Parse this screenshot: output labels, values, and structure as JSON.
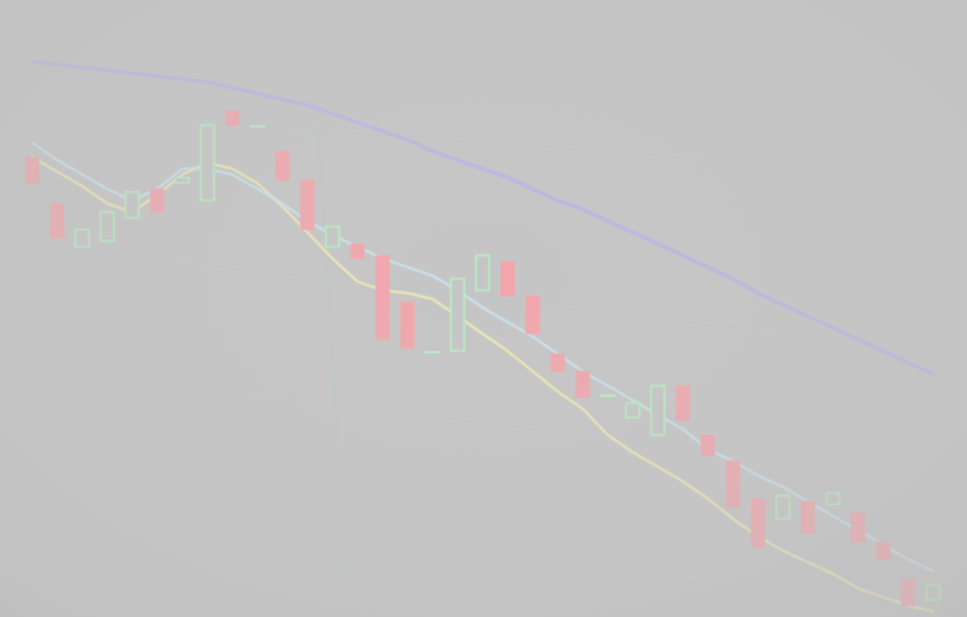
{
  "chart_data": {
    "type": "candlestick",
    "title": "",
    "xlabel": "",
    "ylabel": "",
    "grid": true,
    "legend": "none",
    "x": [
      1,
      2,
      3,
      4,
      5,
      6,
      7,
      8,
      9,
      10,
      11,
      12,
      13,
      14,
      15,
      16,
      17,
      18,
      19,
      20,
      21,
      22,
      23,
      24,
      25,
      26,
      27,
      28,
      29,
      30,
      31,
      32,
      33,
      34,
      35,
      36,
      37
    ],
    "xlim": [
      0,
      38
    ],
    "ylim": [
      0,
      100
    ],
    "candles": [
      {
        "x": 1,
        "open": 79.0,
        "close": 74.5,
        "high": 80.0,
        "low": 73.0
      },
      {
        "x": 2,
        "open": 71.0,
        "close": 65.0,
        "high": 76.0,
        "low": 62.5
      },
      {
        "x": 3,
        "open": 63.5,
        "close": 66.5,
        "high": 74.5,
        "low": 60.5
      },
      {
        "x": 4,
        "open": 64.5,
        "close": 69.5,
        "high": 74.0,
        "low": 61.5
      },
      {
        "x": 5,
        "open": 68.5,
        "close": 73.0,
        "high": 76.0,
        "low": 66.5
      },
      {
        "x": 6,
        "open": 73.5,
        "close": 69.5,
        "high": 76.5,
        "low": 66.5
      },
      {
        "x": 7,
        "open": 74.5,
        "close": 75.5,
        "high": 77.5,
        "low": 74.0
      },
      {
        "x": 8,
        "open": 71.5,
        "close": 84.5,
        "high": 85.5,
        "low": 70.0
      },
      {
        "x": 9,
        "open": 87.0,
        "close": 84.5,
        "high": 88.5,
        "low": 83.5
      },
      {
        "x": 10,
        "open": 84.5,
        "close": 84.5,
        "high": 89.5,
        "low": 79.5
      },
      {
        "x": 11,
        "open": 80.0,
        "close": 75.0,
        "high": 80.5,
        "low": 58.5
      },
      {
        "x": 12,
        "open": 75.0,
        "close": 66.5,
        "high": 75.0,
        "low": 64.5
      },
      {
        "x": 13,
        "open": 63.5,
        "close": 67.0,
        "high": 68.5,
        "low": 62.0
      },
      {
        "x": 14,
        "open": 64.0,
        "close": 61.5,
        "high": 64.5,
        "low": 59.5
      },
      {
        "x": 15,
        "open": 62.0,
        "close": 47.5,
        "high": 62.0,
        "low": 47.0
      },
      {
        "x": 16,
        "open": 54.0,
        "close": 46.0,
        "high": 54.5,
        "low": 45.5
      },
      {
        "x": 17,
        "open": 45.5,
        "close": 45.5,
        "high": 53.5,
        "low": 32.5
      },
      {
        "x": 18,
        "open": 45.5,
        "close": 58.0,
        "high": 58.5,
        "low": 45.0
      },
      {
        "x": 19,
        "open": 56.0,
        "close": 62.0,
        "high": 65.0,
        "low": 55.0
      },
      {
        "x": 20,
        "open": 61.0,
        "close": 55.0,
        "high": 61.0,
        "low": 54.0
      },
      {
        "x": 21,
        "open": 55.0,
        "close": 48.5,
        "high": 55.5,
        "low": 42.5
      },
      {
        "x": 22,
        "open": 45.0,
        "close": 42.0,
        "high": 45.5,
        "low": 35.0
      },
      {
        "x": 23,
        "open": 42.0,
        "close": 37.5,
        "high": 43.0,
        "low": 35.5
      },
      {
        "x": 24,
        "open": 38.0,
        "close": 38.0,
        "high": 44.0,
        "low": 37.0
      },
      {
        "x": 25,
        "open": 34.0,
        "close": 36.5,
        "high": 38.5,
        "low": 20.0
      },
      {
        "x": 26,
        "open": 31.0,
        "close": 39.5,
        "high": 42.0,
        "low": 29.5
      },
      {
        "x": 27,
        "open": 39.5,
        "close": 33.5,
        "high": 40.0,
        "low": 31.5
      },
      {
        "x": 28,
        "open": 31.0,
        "close": 27.5,
        "high": 33.5,
        "low": 25.5
      },
      {
        "x": 29,
        "open": 26.5,
        "close": 18.5,
        "high": 27.0,
        "low": 17.5
      },
      {
        "x": 30,
        "open": 20.0,
        "close": 11.5,
        "high": 21.5,
        "low": 11.0
      },
      {
        "x": 31,
        "open": 16.5,
        "close": 20.5,
        "high": 27.0,
        "low": 15.5
      },
      {
        "x": 32,
        "open": 19.5,
        "close": 14.0,
        "high": 20.5,
        "low": 10.5
      },
      {
        "x": 33,
        "open": 19.0,
        "close": 21.0,
        "high": 24.0,
        "low": 17.5
      },
      {
        "x": 34,
        "open": 17.5,
        "close": 12.5,
        "high": 18.0,
        "low": 12.0
      },
      {
        "x": 35,
        "open": 12.5,
        "close": 9.5,
        "high": 13.5,
        "low": 7.5
      },
      {
        "x": 36,
        "open": 6.0,
        "close": 1.5,
        "high": 6.5,
        "low": 0.5
      },
      {
        "x": 37,
        "open": 2.5,
        "close": 5.0,
        "high": 12.0,
        "low": 0.5
      }
    ],
    "series": [
      {
        "type": "line",
        "color": "#efe9b2",
        "values": [
          79.0,
          76.5,
          74.0,
          71.0,
          69.5,
          72.5,
          76.0,
          78.0,
          77.0,
          74.5,
          70.5,
          66.0,
          61.5,
          57.5,
          56.0,
          55.5,
          54.5,
          51.5,
          48.5,
          45.5,
          42.0,
          38.5,
          35.5,
          31.0,
          28.0,
          25.5,
          23.0,
          20.0,
          16.5,
          13.5,
          11.0,
          9.0,
          7.0,
          4.5,
          3.0,
          1.5,
          0.5
        ]
      },
      {
        "type": "line",
        "color": "#c9e3ee",
        "values": [
          81.5,
          78.5,
          76.0,
          73.5,
          71.5,
          73.5,
          77.0,
          77.0,
          76.0,
          73.5,
          71.0,
          68.0,
          65.5,
          63.5,
          61.5,
          60.0,
          58.5,
          56.0,
          53.0,
          50.5,
          48.0,
          45.0,
          42.0,
          39.5,
          37.0,
          34.5,
          32.0,
          28.5,
          26.5,
          24.0,
          22.0,
          19.5,
          17.0,
          14.5,
          12.0,
          9.5,
          7.5
        ]
      },
      {
        "type": "line",
        "color": "#b9b3e6",
        "values": [
          95.5,
          95.0,
          94.5,
          94.0,
          93.5,
          93.0,
          92.5,
          92.0,
          91.0,
          90.0,
          89.0,
          88.0,
          86.5,
          85.0,
          83.5,
          82.0,
          80.0,
          78.5,
          77.0,
          75.5,
          73.5,
          71.5,
          70.0,
          68.0,
          66.0,
          64.0,
          62.0,
          60.0,
          58.0,
          55.5,
          53.5,
          51.5,
          49.5,
          47.5,
          45.5,
          43.5,
          41.5
        ]
      }
    ],
    "colors": {
      "background": "#c5c5c5",
      "up": "#b7ecbf",
      "down": "#f3a5ab",
      "grid": "#b8c8c8"
    }
  }
}
